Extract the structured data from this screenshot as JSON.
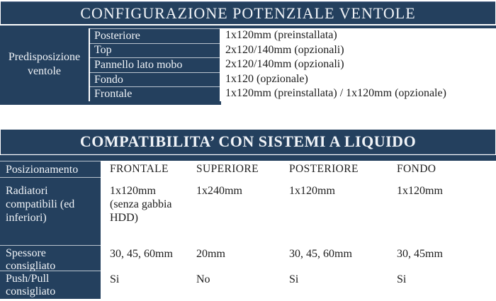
{
  "colors": {
    "navy": "#24405e",
    "separator": "#b9c3ce",
    "text_light": "#f1f4f8",
    "text_dark": "#1c1c1c"
  },
  "fan_config": {
    "title": "CONFIGURAZIONE POTENZIALE VENTOLE",
    "row_group_label": "Predisposizione\nventole",
    "rows": [
      {
        "location": "Posteriore",
        "value": "1x120mm (preinstallata)"
      },
      {
        "location": "Top",
        "value": "2x120/140mm (opzionali)"
      },
      {
        "location": "Pannello lato mobo",
        "value": "2x120/140mm (opzionali)"
      },
      {
        "location": "Fondo",
        "value": "1x120 (opzionale)"
      },
      {
        "location": "Frontale",
        "value": "1x120mm (preinstallata) / 1x120mm (opzionale)"
      }
    ]
  },
  "liquid_compat": {
    "title": "COMPATIBILITA’ CON SISTEMI A LIQUIDO",
    "position_label": "Posizionamento",
    "columns": [
      "FRONTALE",
      "SUPERIORE",
      "POSTERIORE",
      "FONDO"
    ],
    "rows": [
      {
        "label": "Radiatori\ncompatibili (ed\ninferiori)",
        "values": [
          "1x120mm\n(senza gabbia\nHDD)",
          "1x240mm",
          "1x120mm",
          "1x120mm"
        ]
      },
      {
        "label": "Spessore\nconsigliato",
        "values": [
          "30, 45, 60mm",
          "20mm",
          "30, 45, 60mm",
          "30, 45mm"
        ]
      },
      {
        "label": "Push/Pull\nconsigliato",
        "values": [
          "Si",
          "No",
          "Si",
          "Si"
        ]
      }
    ]
  }
}
